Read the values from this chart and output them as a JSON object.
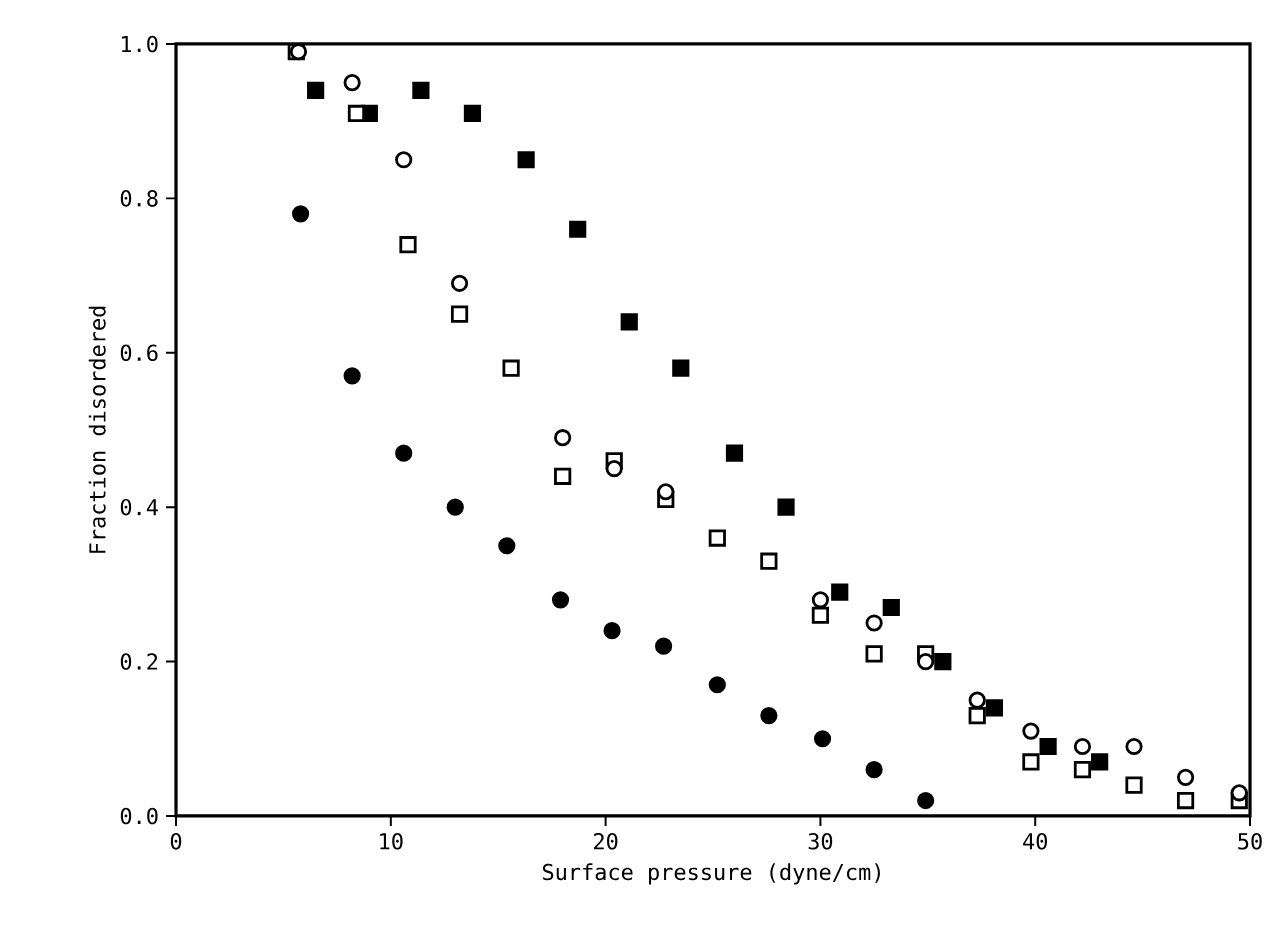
{
  "chart_data": {
    "type": "scatter",
    "xlabel": "Surface pressure (dyne/cm)",
    "ylabel": "Fraction disordered",
    "xlim": [
      0,
      50
    ],
    "ylim": [
      0,
      1.0
    ],
    "xticks": [
      0,
      10,
      20,
      30,
      40,
      50
    ],
    "yticks": [
      {
        "value": 0,
        "label": "0.0"
      },
      {
        "value": 0.2,
        "label": "0.2"
      },
      {
        "value": 0.4,
        "label": "0.4"
      },
      {
        "value": 0.6,
        "label": "0.6"
      },
      {
        "value": 0.8,
        "label": "0.8"
      },
      {
        "value": 1.0,
        "label": "1.0"
      }
    ],
    "grid": false,
    "series": [
      {
        "color": "#000000",
        "marker": "circle",
        "x": [
          5.8,
          8.2,
          10.6,
          13.0,
          15.4,
          17.9,
          20.3,
          22.7,
          25.2,
          27.6,
          30.1,
          32.5,
          34.9
        ],
        "values": [
          0.78,
          0.57,
          0.47,
          0.4,
          0.35,
          0.28,
          0.24,
          0.22,
          0.17,
          0.13,
          0.1,
          0.06,
          0.02
        ]
      },
      {
        "color": "#000000",
        "marker": "square",
        "x": [
          6.5,
          9.0,
          11.4,
          13.8,
          16.3,
          18.7,
          21.1,
          23.5,
          26.0,
          28.4,
          30.9,
          33.3,
          35.7,
          38.1,
          40.6,
          43.0
        ],
        "values": [
          0.94,
          0.91,
          0.94,
          0.91,
          0.85,
          0.76,
          0.64,
          0.58,
          0.47,
          0.4,
          0.29,
          0.27,
          0.2,
          0.14,
          0.09,
          0.07
        ]
      },
      {
        "color": "#ffffff",
        "marker": "square",
        "x": [
          5.6,
          8.4,
          10.8,
          13.2,
          15.6,
          18.0,
          20.4,
          22.8,
          25.2,
          27.6,
          30.0,
          32.5,
          34.9,
          37.3,
          39.8,
          42.2,
          44.6,
          47.0,
          49.5
        ],
        "values": [
          0.99,
          0.91,
          0.74,
          0.65,
          0.58,
          0.44,
          0.46,
          0.41,
          0.36,
          0.33,
          0.26,
          0.21,
          0.21,
          0.13,
          0.07,
          0.06,
          0.04,
          0.02,
          0.02
        ]
      },
      {
        "color": "#ffffff",
        "marker": "circle",
        "x": [
          5.7,
          8.2,
          10.6,
          13.2,
          18.0,
          20.4,
          22.8,
          30.0,
          32.5,
          34.9,
          37.3,
          39.8,
          42.2,
          44.6,
          47.0,
          49.5
        ],
        "values": [
          0.99,
          0.95,
          0.85,
          0.69,
          0.49,
          0.45,
          0.42,
          0.28,
          0.25,
          0.2,
          0.15,
          0.11,
          0.09,
          0.09,
          0.05,
          0.03
        ]
      }
    ]
  }
}
